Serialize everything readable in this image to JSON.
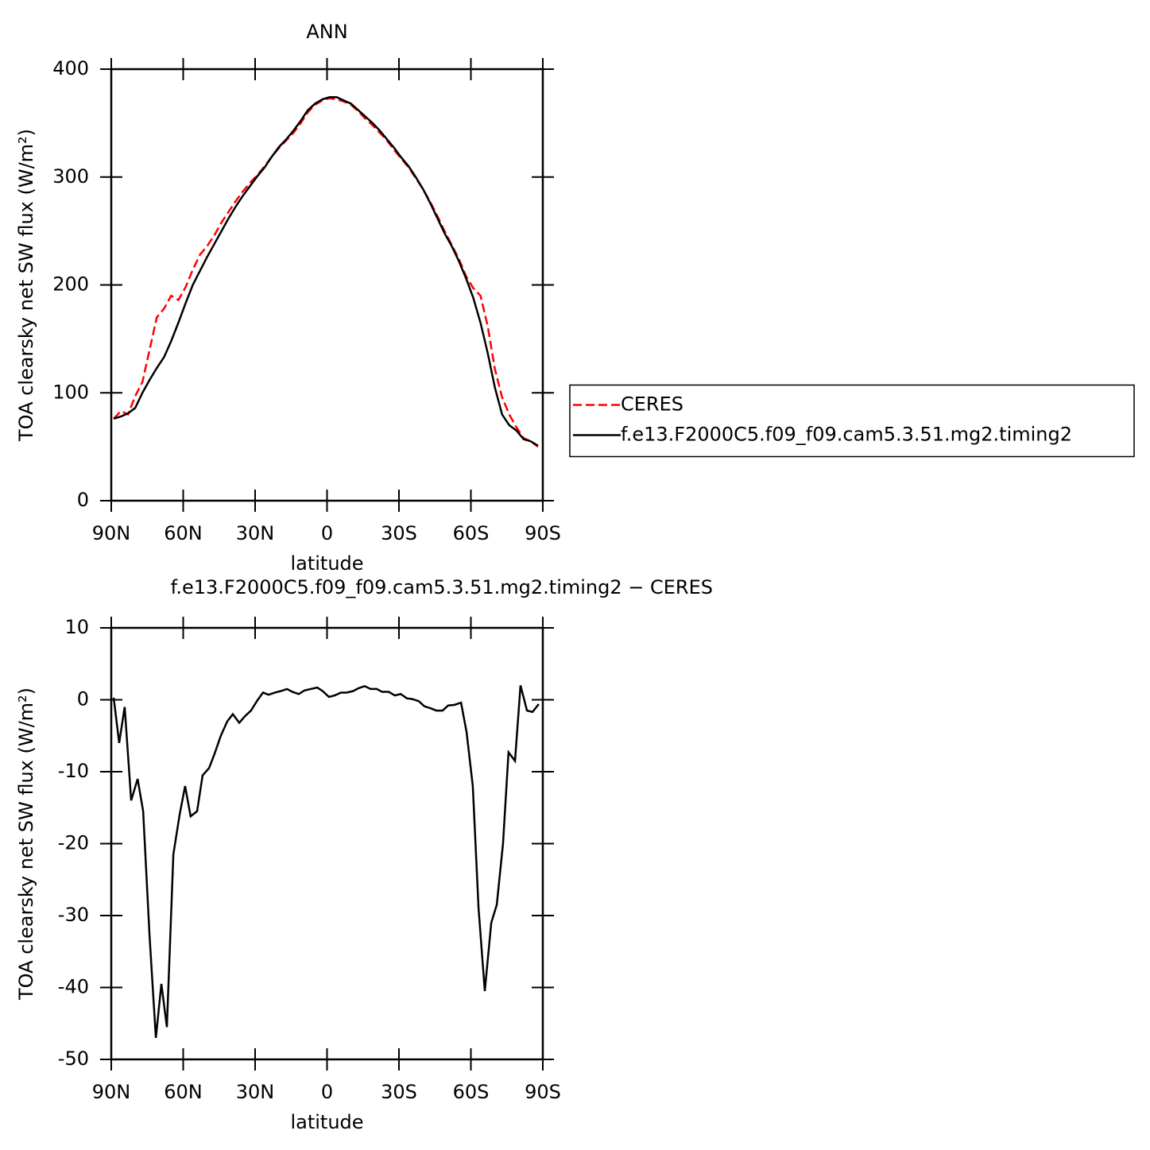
{
  "chart_data": [
    {
      "type": "line",
      "title": "ANN",
      "xlabel": "latitude",
      "ylabel": "TOA clearsky net SW flux (W/m²)",
      "x": [
        89,
        86,
        83,
        80,
        77,
        74,
        71,
        68,
        65,
        62,
        59,
        56,
        53,
        50,
        47,
        44,
        41,
        38,
        35,
        32,
        29,
        26,
        23,
        20,
        17,
        14,
        11,
        8,
        5,
        2,
        -1,
        -4,
        -7,
        -10,
        -13,
        -16,
        -19,
        -22,
        -25,
        -28,
        -31,
        -34,
        -37,
        -40,
        -43,
        -46,
        -49,
        -52,
        -55,
        -58,
        -61,
        -64,
        -67,
        -70,
        -73,
        -76,
        -79,
        -82,
        -85,
        -88
      ],
      "series": [
        {
          "name": "CERES",
          "color": "#ff0000",
          "line_style": "dashed",
          "values": [
            76,
            83,
            80,
            97,
            110,
            140,
            170,
            178,
            190,
            186,
            198,
            214,
            228,
            236,
            246,
            258,
            268,
            278,
            287,
            295,
            302,
            310,
            319,
            327,
            334,
            341,
            350,
            360,
            367,
            371,
            373,
            372,
            370,
            367,
            361,
            354,
            348,
            341,
            334,
            325,
            317,
            309,
            299,
            289,
            277,
            264,
            250,
            237,
            224,
            208,
            197,
            190,
            162,
            122,
            96,
            80,
            68,
            58,
            55,
            50
          ]
        },
        {
          "name": "f.e13.F2000C5.f09_f09.cam5.3.51.mg2.timing2",
          "color": "#000000",
          "line_style": "solid",
          "values": [
            76,
            78,
            81,
            86,
            100,
            112,
            123,
            133,
            148,
            165,
            183,
            200,
            213,
            226,
            238,
            250,
            262,
            273,
            283,
            292,
            301,
            309,
            319,
            328,
            335,
            343,
            352,
            362,
            368,
            372,
            374,
            374,
            371,
            368,
            362,
            356,
            350,
            343,
            335,
            327,
            318,
            310,
            300,
            289,
            276,
            262,
            248,
            236,
            222,
            206,
            188,
            165,
            137,
            105,
            80,
            70,
            65,
            57,
            55,
            51
          ]
        }
      ],
      "xlim": [
        90,
        -90
      ],
      "xticks": [
        {
          "value": 90,
          "label": "90N"
        },
        {
          "value": 60,
          "label": "60N"
        },
        {
          "value": 30,
          "label": "30N"
        },
        0,
        {
          "value": -30,
          "label": "30S"
        },
        {
          "value": -60,
          "label": "60S"
        },
        {
          "value": -90,
          "label": "90S"
        }
      ],
      "ylim": [
        0,
        400
      ],
      "yticks": [
        0,
        100,
        200,
        300,
        400
      ],
      "legend": "right"
    },
    {
      "type": "line",
      "title": "f.e13.F2000C5.f09_f09.cam5.3.51.mg2.timing2 − CERES",
      "xlabel": "latitude",
      "ylabel": "TOA clearsky net SW flux (W/m²)",
      "x": [
        89,
        86.7,
        84.4,
        81.7,
        79,
        76.7,
        74,
        71.4,
        69.1,
        66.8,
        64.1,
        61.5,
        59.2,
        56.9,
        54.2,
        51.9,
        49.2,
        46.9,
        44.3,
        41.6,
        39.3,
        36.6,
        34.3,
        31.7,
        29.3,
        26.7,
        24.4,
        21.7,
        19.4,
        16.7,
        14.4,
        11.8,
        9.4,
        6.8,
        4.1,
        1.8,
        -0.8,
        -3.2,
        -5.8,
        -8.1,
        -10.8,
        -13.1,
        -15.7,
        -18.1,
        -20.7,
        -23,
        -25.7,
        -28.3,
        -30.7,
        -33.3,
        -35.6,
        -38.3,
        -40.6,
        -43.3,
        -45.6,
        -48.2,
        -50.5,
        -53.2,
        -55.9,
        -58.2,
        -60.8,
        -63.2,
        -65.8,
        -68.5,
        -70.8,
        -73.4,
        -75.7,
        -78.4,
        -80.7,
        -83.4,
        -85.7,
        -88.3
      ],
      "series": [
        {
          "color": "#000000",
          "line_style": "solid",
          "values": [
            0.3,
            -6,
            -1,
            -14,
            -11,
            -15.5,
            -33,
            -47,
            -39.5,
            -45.5,
            -21.5,
            -16,
            -12,
            -16.2,
            -15.5,
            -10.5,
            -9.5,
            -7.5,
            -5,
            -3,
            -2,
            -3.2,
            -2.3,
            -1.5,
            -0.2,
            1,
            0.7,
            1,
            1.2,
            1.5,
            1.1,
            0.8,
            1.3,
            1.5,
            1.7,
            1.2,
            0.4,
            0.6,
            1,
            1,
            1.2,
            1.6,
            1.9,
            1.5,
            1.5,
            1.1,
            1.1,
            0.6,
            0.8,
            0.2,
            0.1,
            -0.2,
            -0.9,
            -1.2,
            -1.5,
            -1.5,
            -0.8,
            -0.7,
            -0.4,
            -4.5,
            -12,
            -29,
            -40.5,
            -31,
            -28.5,
            -20,
            -7.3,
            -8.5,
            2,
            -1.5,
            -1.7,
            -0.6
          ]
        }
      ],
      "xlim": [
        90,
        -90
      ],
      "xticks": [
        {
          "value": 90,
          "label": "90N"
        },
        {
          "value": 60,
          "label": "60N"
        },
        {
          "value": 30,
          "label": "30N"
        },
        0,
        {
          "value": -30,
          "label": "30S"
        },
        {
          "value": -60,
          "label": "60S"
        },
        {
          "value": -90,
          "label": "90S"
        }
      ],
      "ylim": [
        -50,
        10
      ],
      "yticks": [
        -50,
        -40,
        -30,
        -20,
        -10,
        0,
        10
      ]
    }
  ]
}
